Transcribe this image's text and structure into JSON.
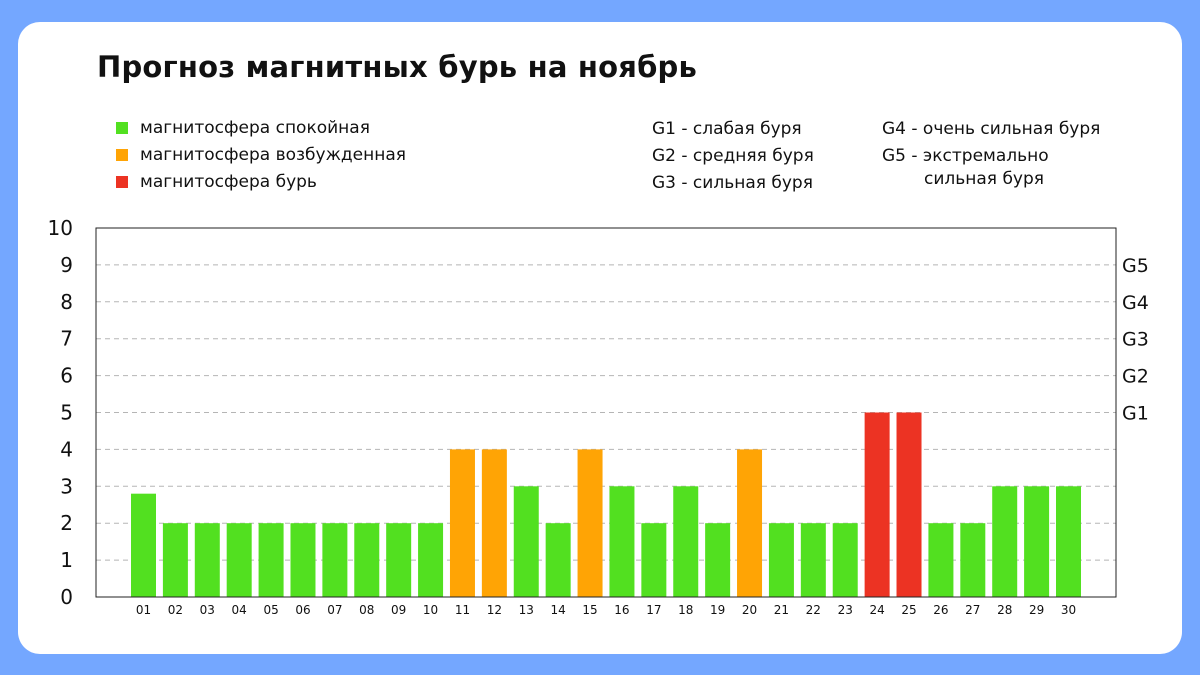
{
  "colors": {
    "page_bg": "#74a7ff",
    "card_bg": "#ffffff",
    "quiet": "#52e020",
    "excited": "#ffa405",
    "storm": "#ec3323",
    "grid": "#b5b5b5"
  },
  "legend": {
    "items": [
      {
        "label": "магнитосфера спокойная",
        "color": "#52e020"
      },
      {
        "label": "магнитосфера возбужденная",
        "color": "#ffa405"
      },
      {
        "label": "магнитосфера бурь",
        "color": "#ec3323"
      }
    ]
  },
  "storm_legend": {
    "col1": [
      "G1 - слабая буря",
      "G2 - средняя буря",
      "G3 - сильная буря"
    ],
    "g4": "G4 - очень сильная буря",
    "g5_line1": "G5 - экстремально",
    "g5_line2": "сильная буря"
  },
  "chart_data": {
    "type": "bar",
    "title": "Прогноз магнитных бурь на ноябрь",
    "xlabel": "",
    "ylabel": "",
    "ylim": [
      0,
      10
    ],
    "y_ticks": [
      0,
      1,
      2,
      3,
      4,
      5,
      6,
      7,
      8,
      9,
      10
    ],
    "right_axis_labels": [
      {
        "y": 5,
        "label": "G1"
      },
      {
        "y": 6,
        "label": "G2"
      },
      {
        "y": 7,
        "label": "G3"
      },
      {
        "y": 8,
        "label": "G4"
      },
      {
        "y": 9,
        "label": "G5"
      }
    ],
    "grid": true,
    "categories": [
      "01",
      "02",
      "03",
      "04",
      "05",
      "06",
      "07",
      "08",
      "09",
      "10",
      "11",
      "12",
      "13",
      "14",
      "15",
      "16",
      "17",
      "18",
      "19",
      "20",
      "21",
      "22",
      "23",
      "24",
      "25",
      "26",
      "27",
      "28",
      "29",
      "30"
    ],
    "values": [
      2.8,
      2,
      2,
      2,
      2,
      2,
      2,
      2,
      2,
      2,
      4,
      4,
      3,
      2,
      4,
      3,
      2,
      3,
      2,
      4,
      2,
      2,
      2,
      5,
      5,
      2,
      2,
      3,
      3,
      3
    ],
    "levels": [
      "quiet",
      "quiet",
      "quiet",
      "quiet",
      "quiet",
      "quiet",
      "quiet",
      "quiet",
      "quiet",
      "quiet",
      "excited",
      "excited",
      "quiet",
      "quiet",
      "excited",
      "quiet",
      "quiet",
      "quiet",
      "quiet",
      "excited",
      "quiet",
      "quiet",
      "quiet",
      "storm",
      "storm",
      "quiet",
      "quiet",
      "quiet",
      "quiet",
      "quiet"
    ]
  }
}
